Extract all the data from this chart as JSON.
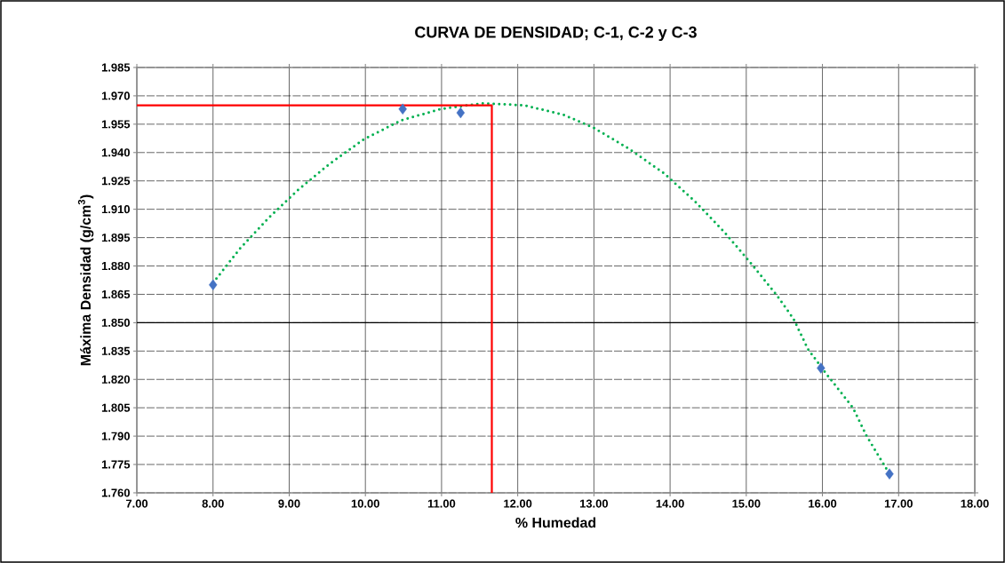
{
  "chart_data": {
    "type": "scatter",
    "title": "CURVA DE DENSIDAD; C-1, C-2 y C-3",
    "xlabel": "%   Humedad",
    "ylabel": "Máxima Densidad  (g/cm$^{3}$)",
    "xlim": [
      7,
      18
    ],
    "ylim": [
      1.76,
      1.985
    ],
    "xticks": [
      {
        "value": 7,
        "label": "7.00"
      },
      {
        "value": 8,
        "label": "8.00"
      },
      {
        "value": 9,
        "label": "9.00"
      },
      {
        "value": 10,
        "label": "10.00"
      },
      {
        "value": 11,
        "label": "11.00"
      },
      {
        "value": 12,
        "label": "12.00"
      },
      {
        "value": 13,
        "label": "13.00"
      },
      {
        "value": 14,
        "label": "14.00"
      },
      {
        "value": 15,
        "label": "15.00"
      },
      {
        "value": 16,
        "label": "16.00"
      },
      {
        "value": 17,
        "label": "17.00"
      },
      {
        "value": 18,
        "label": "18.00"
      }
    ],
    "yticks": [
      {
        "value": 1.76,
        "label": "1.760"
      },
      {
        "value": 1.775,
        "label": "1.775"
      },
      {
        "value": 1.79,
        "label": "1.790"
      },
      {
        "value": 1.805,
        "label": "1.805"
      },
      {
        "value": 1.82,
        "label": "1.820"
      },
      {
        "value": 1.835,
        "label": "1.835"
      },
      {
        "value": 1.85,
        "label": "1.850"
      },
      {
        "value": 1.865,
        "label": "1.865"
      },
      {
        "value": 1.88,
        "label": "1.880"
      },
      {
        "value": 1.895,
        "label": "1.895"
      },
      {
        "value": 1.91,
        "label": "1.910"
      },
      {
        "value": 1.925,
        "label": "1.925"
      },
      {
        "value": 1.94,
        "label": "1.940"
      },
      {
        "value": 1.955,
        "label": "1.955"
      },
      {
        "value": 1.97,
        "label": "1.970"
      },
      {
        "value": 1.985,
        "label": "1.985"
      }
    ],
    "grid": true,
    "ref_lines": [
      {
        "axis": "y",
        "value": 1.85,
        "color": "#000000"
      }
    ],
    "series": [
      {
        "type": "line",
        "line_style": "dotted",
        "marker": "none",
        "color": "#00b050",
        "x": [
          8.0,
          8.35,
          8.72,
          9.11,
          9.53,
          9.98,
          10.47,
          10.99,
          11.53,
          12.08,
          12.6,
          13.0,
          13.46,
          13.92,
          14.33,
          14.71,
          15.07,
          15.41,
          15.62,
          15.81,
          16.03,
          16.4,
          16.58,
          16.85
        ],
        "values": [
          1.871,
          1.889,
          1.905,
          1.92,
          1.934,
          1.947,
          1.957,
          1.963,
          1.966,
          1.965,
          1.96,
          1.953,
          1.942,
          1.929,
          1.914,
          1.898,
          1.881,
          1.864,
          1.852,
          1.836,
          1.824,
          1.805,
          1.79,
          1.772
        ]
      },
      {
        "type": "line",
        "line_style": "solid",
        "marker": "none",
        "color": "#ff0000",
        "x": [
          7,
          11.66,
          11.66
        ],
        "values": [
          1.965,
          1.965,
          1.76
        ]
      },
      {
        "marker": "diamond",
        "color": "#4472c4",
        "x": [
          8.0,
          10.49,
          11.25,
          15.98,
          16.88
        ],
        "values": [
          1.87,
          1.963,
          1.961,
          1.826,
          1.77
        ]
      }
    ]
  }
}
